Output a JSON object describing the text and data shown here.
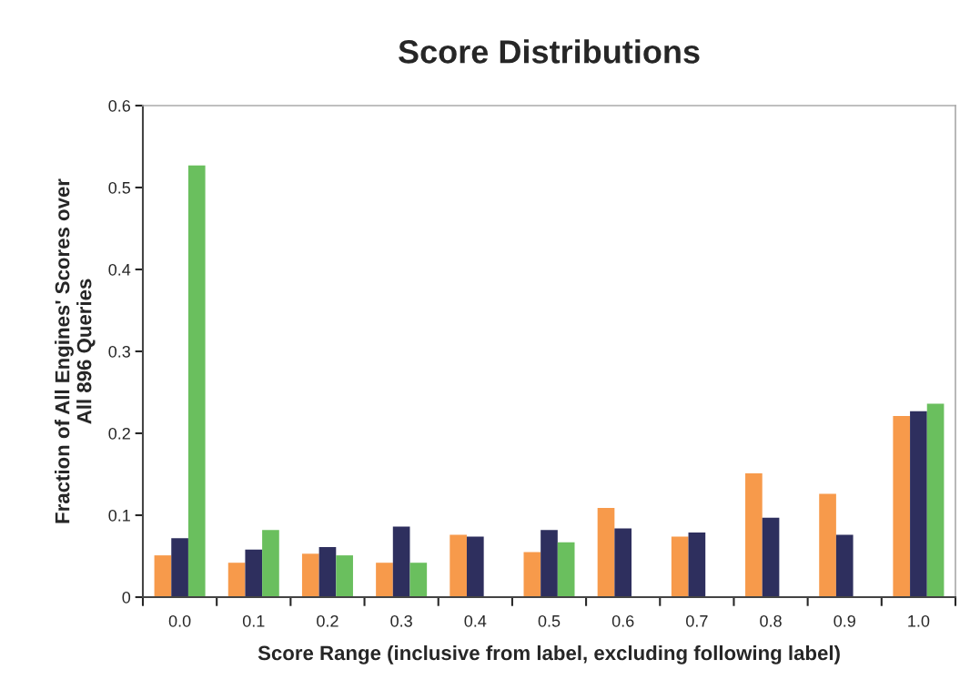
{
  "chart_data": {
    "type": "bar",
    "title": "Score Distributions",
    "xlabel": "Score Range (inclusive from label, excluding following label)",
    "ylabel": "Fraction of All Engines' Scores over\nAll 896 Queries",
    "categories": [
      "0.0",
      "0.1",
      "0.2",
      "0.3",
      "0.4",
      "0.5",
      "0.6",
      "0.7",
      "0.8",
      "0.9",
      "1.0"
    ],
    "series": [
      {
        "color": "#f79a4b",
        "values": [
          0.051,
          0.042,
          0.053,
          0.042,
          0.076,
          0.055,
          0.109,
          0.074,
          0.151,
          0.126,
          0.221
        ]
      },
      {
        "color": "#2e2f5e",
        "values": [
          0.072,
          0.058,
          0.061,
          0.086,
          0.074,
          0.082,
          0.084,
          0.079,
          0.097,
          0.076,
          0.227
        ]
      },
      {
        "color": "#6abf5e",
        "values": [
          0.527,
          0.082,
          0.051,
          0.042,
          null,
          0.067,
          null,
          null,
          null,
          null,
          0.236
        ]
      }
    ],
    "ylim": [
      0,
      0.6
    ],
    "yticks": [
      0,
      0.1,
      0.2,
      0.3,
      0.4,
      0.5,
      0.6
    ],
    "grid": false,
    "legend": false
  }
}
